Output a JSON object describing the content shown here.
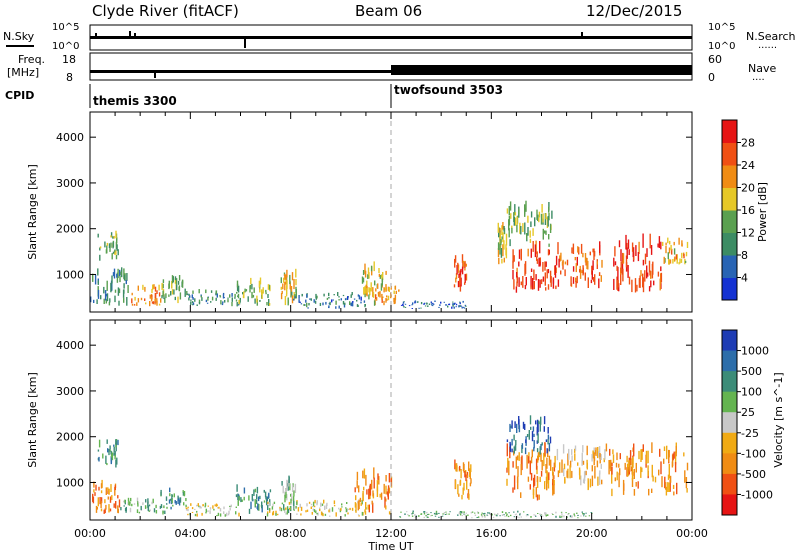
{
  "header": {
    "station": "Clyde River (fitACF)",
    "beam": "Beam 06",
    "date": "12/Dec/2015"
  },
  "strip_labels": {
    "nsky": "N.Sky",
    "nsearch": "N.Search",
    "freq_line1": "Freq.",
    "freq_line2": "[MHz]",
    "nave": "Nave",
    "cpid": "CPID",
    "dots": "......",
    "dots_short": "...."
  },
  "strip_ticks": {
    "noise_left": [
      "10^5",
      "10^0"
    ],
    "noise_right": [
      "10^5",
      "10^0"
    ],
    "freq_left": [
      "18",
      "8"
    ],
    "nave_right": [
      "60",
      "0"
    ]
  },
  "cpid": [
    {
      "label": "themis 3300",
      "start_hour": 0
    },
    {
      "label": "twofsound 3503",
      "start_hour": 12
    }
  ],
  "colors": {
    "power_scale": [
      "#1432d2",
      "#2864b4",
      "#3c8c64",
      "#5aa050",
      "#e6c828",
      "#f08c14",
      "#f05014",
      "#e61414"
    ],
    "velocity_scale": [
      "#1e3cb4",
      "#2d6eaa",
      "#3c8c78",
      "#64b450",
      "#c8c8c8",
      "#f0aa14",
      "#f08c14",
      "#f05014",
      "#e61414"
    ]
  },
  "chart_data": [
    {
      "type": "heatmap",
      "name": "power",
      "ylabel": "Slant Range [km]",
      "xlabel": "",
      "x_ticks": [
        "00:00",
        "04:00",
        "08:00",
        "12:00",
        "16:00",
        "20:00",
        "00:00"
      ],
      "y_ticks": [
        1000,
        2000,
        3000,
        4000
      ],
      "xlim_hours": [
        0,
        24
      ],
      "ylim": [
        180,
        4550
      ],
      "colorbar": {
        "label": "Power [dB]",
        "ticks": [
          4,
          8,
          12,
          16,
          20,
          24,
          28
        ],
        "range": [
          0,
          32
        ]
      },
      "patches": [
        {
          "t0": 0.3,
          "t1": 1.1,
          "r0": 1300,
          "r1": 1850,
          "v": 14
        },
        {
          "t0": 0.0,
          "t1": 1.5,
          "r0": 300,
          "r1": 1000,
          "v": 10
        },
        {
          "t0": 1.6,
          "t1": 2.8,
          "r0": 300,
          "r1": 700,
          "v": 22
        },
        {
          "t0": 2.8,
          "t1": 3.8,
          "r0": 350,
          "r1": 900,
          "v": 14
        },
        {
          "t0": 3.8,
          "t1": 6.0,
          "r0": 300,
          "r1": 600,
          "v": 10
        },
        {
          "t0": 5.8,
          "t1": 7.2,
          "r0": 300,
          "r1": 800,
          "v": 14
        },
        {
          "t0": 7.6,
          "t1": 8.2,
          "r0": 300,
          "r1": 1000,
          "v": 18
        },
        {
          "t0": 8.0,
          "t1": 11.0,
          "r0": 250,
          "r1": 550,
          "v": 8
        },
        {
          "t0": 10.8,
          "t1": 11.8,
          "r0": 400,
          "r1": 1100,
          "v": 18
        },
        {
          "t0": 11.2,
          "t1": 12.3,
          "r0": 300,
          "r1": 700,
          "v": 20
        },
        {
          "t0": 14.5,
          "t1": 15.0,
          "r0": 600,
          "r1": 1300,
          "v": 26
        },
        {
          "t0": 16.2,
          "t1": 16.6,
          "r0": 1200,
          "r1": 2000,
          "v": 16
        },
        {
          "t0": 16.8,
          "t1": 18.6,
          "r0": 600,
          "r1": 1500,
          "v": 28
        },
        {
          "t0": 16.6,
          "t1": 18.4,
          "r0": 1600,
          "r1": 2400,
          "v": 14
        },
        {
          "t0": 18.6,
          "t1": 20.4,
          "r0": 700,
          "r1": 1500,
          "v": 26
        },
        {
          "t0": 20.8,
          "t1": 22.8,
          "r0": 600,
          "r1": 1600,
          "v": 28
        },
        {
          "t0": 22.8,
          "t1": 23.8,
          "r0": 1200,
          "r1": 1700,
          "v": 20
        },
        {
          "t0": 12.3,
          "t1": 15.0,
          "r0": 250,
          "r1": 400,
          "v": 6
        }
      ]
    },
    {
      "type": "heatmap",
      "name": "velocity",
      "ylabel": "Slant Range [km]",
      "xlabel": "Time UT",
      "x_ticks": [
        "00:00",
        "04:00",
        "08:00",
        "12:00",
        "16:00",
        "20:00",
        "00:00"
      ],
      "y_ticks": [
        1000,
        2000,
        3000,
        4000
      ],
      "xlim_hours": [
        0,
        24
      ],
      "ylim": [
        180,
        4550
      ],
      "colorbar": {
        "label": "Velocity [m s^-1]",
        "ticks": [
          "1000",
          "500",
          "100",
          "25",
          "-25",
          "-100",
          "-500",
          "-1000"
        ]
      },
      "patches": [
        {
          "t0": 0.3,
          "t1": 1.1,
          "r0": 1300,
          "r1": 1850,
          "c": 2
        },
        {
          "t0": 0.0,
          "t1": 1.2,
          "r0": 300,
          "r1": 900,
          "c": 6
        },
        {
          "t0": 1.2,
          "t1": 3.0,
          "r0": 300,
          "r1": 600,
          "c": 3
        },
        {
          "t0": 2.8,
          "t1": 3.8,
          "r0": 400,
          "r1": 800,
          "c": 2
        },
        {
          "t0": 3.8,
          "t1": 6.0,
          "r0": 250,
          "r1": 500,
          "c": 4
        },
        {
          "t0": 5.8,
          "t1": 7.2,
          "r0": 300,
          "r1": 800,
          "c": 2
        },
        {
          "t0": 7.6,
          "t1": 8.2,
          "r0": 300,
          "r1": 1000,
          "c": 3
        },
        {
          "t0": 7.0,
          "t1": 11.0,
          "r0": 250,
          "r1": 550,
          "c": 4
        },
        {
          "t0": 10.5,
          "t1": 12.0,
          "r0": 300,
          "r1": 1100,
          "c": 6
        },
        {
          "t0": 14.5,
          "t1": 15.2,
          "r0": 600,
          "r1": 1300,
          "c": 6
        },
        {
          "t0": 16.5,
          "t1": 18.5,
          "r0": 600,
          "r1": 1600,
          "c": 6
        },
        {
          "t0": 16.6,
          "t1": 18.4,
          "r0": 1600,
          "r1": 2300,
          "c": 1
        },
        {
          "t0": 18.4,
          "t1": 20.5,
          "r0": 800,
          "r1": 1700,
          "c": 5
        },
        {
          "t0": 20.5,
          "t1": 23.8,
          "r0": 700,
          "r1": 1700,
          "c": 6
        },
        {
          "t0": 12.3,
          "t1": 20.0,
          "r0": 220,
          "r1": 350,
          "c": 3
        }
      ]
    }
  ]
}
